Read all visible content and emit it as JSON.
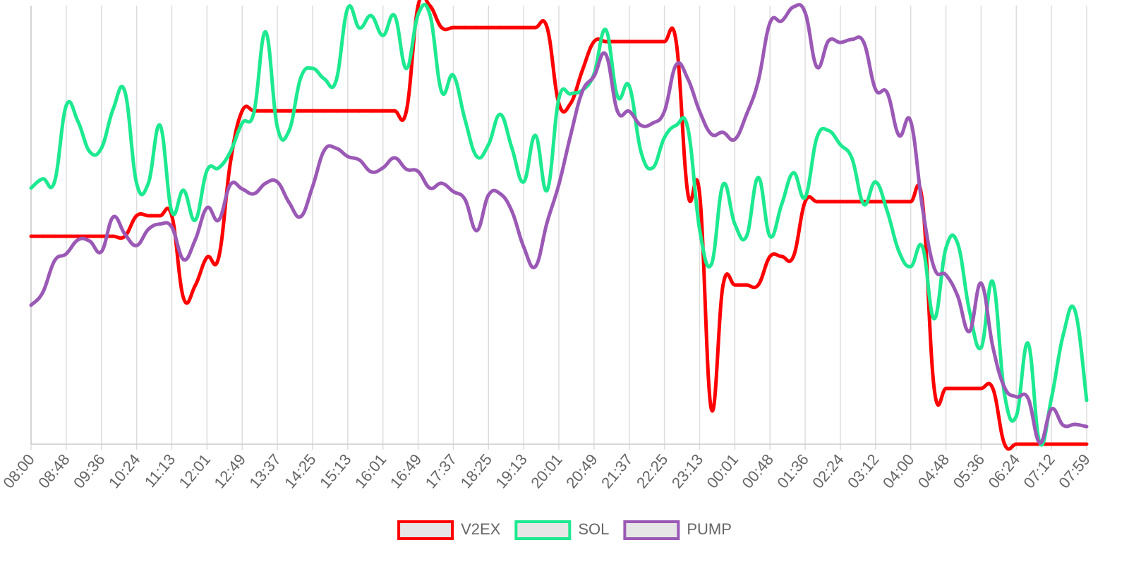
{
  "chart_data": {
    "type": "line",
    "categories": [
      "08:00",
      null,
      null,
      "08:48",
      null,
      null,
      "09:36",
      null,
      null,
      "10:24",
      null,
      null,
      "11:13",
      null,
      null,
      "12:01",
      null,
      null,
      "12:49",
      null,
      null,
      "13:37",
      null,
      null,
      "14:25",
      null,
      null,
      "15:13",
      null,
      null,
      "16:01",
      null,
      null,
      "16:49",
      null,
      null,
      "17:37",
      null,
      null,
      "18:25",
      null,
      null,
      "19:13",
      null,
      null,
      "20:01",
      null,
      null,
      "20:49",
      null,
      null,
      "21:37",
      null,
      null,
      "22:25",
      null,
      null,
      "23:13",
      null,
      null,
      "00:01",
      null,
      null,
      "00:48",
      null,
      null,
      "01:36",
      null,
      null,
      "02:24",
      null,
      null,
      "03:12",
      null,
      null,
      "04:00",
      null,
      null,
      "04:48",
      null,
      null,
      "05:36",
      null,
      null,
      "06:24",
      null,
      null,
      "07:12",
      null,
      null,
      "07:59"
    ],
    "series": [
      {
        "name": "V2EX",
        "color": "#ff0000",
        "values": [
          47.4,
          47.4,
          47.4,
          47.4,
          47.4,
          47.4,
          47.4,
          47.4,
          47.4,
          52.1,
          52.1,
          52.1,
          52.1,
          33.3,
          36.2,
          42.6,
          42.6,
          64.3,
          76,
          76,
          76,
          76,
          76,
          76,
          76,
          76,
          76,
          76,
          76,
          76,
          76,
          76,
          76,
          100,
          100,
          95,
          95,
          95,
          95,
          95,
          95,
          95,
          95,
          95,
          95,
          77.7,
          77.7,
          85.2,
          91.8,
          91.8,
          91.8,
          91.8,
          91.8,
          91.8,
          91.8,
          91.8,
          57.1,
          57.1,
          8,
          36.3,
          36.3,
          36.3,
          36.3,
          42.8,
          42.8,
          42.8,
          55.3,
          55.3,
          55.3,
          55.3,
          55.3,
          55.3,
          55.3,
          55.3,
          55.3,
          55.3,
          55.3,
          12.7,
          12.7,
          12.7,
          12.7,
          12.7,
          12.7,
          0,
          0,
          0,
          0,
          0,
          0,
          0,
          0
        ]
      },
      {
        "name": "SOL",
        "color": "#1de990",
        "values": [
          58.4,
          60.5,
          59.8,
          77.2,
          73.6,
          66.7,
          67.5,
          76.4,
          80.4,
          59.5,
          59.5,
          72.7,
          53,
          57.9,
          51.1,
          62.4,
          63,
          66.7,
          73.2,
          75.6,
          94,
          72.3,
          71.5,
          83.6,
          85.7,
          83.3,
          82.8,
          99.4,
          94.9,
          97.7,
          93.2,
          97.7,
          85.7,
          98,
          98,
          80.4,
          84.1,
          74,
          65.6,
          68.3,
          75.2,
          67.5,
          59.8,
          70.4,
          57.9,
          78.8,
          79.9,
          80.7,
          84.4,
          94.5,
          79.3,
          81.7,
          66.7,
          63,
          69.9,
          72.7,
          72,
          49,
          41,
          59.2,
          50.2,
          47.4,
          60.8,
          47.4,
          54.7,
          61.9,
          56.3,
          69.9,
          71.5,
          68.3,
          65.1,
          54.7,
          59.8,
          53.1,
          43.9,
          40.5,
          45,
          28.6,
          44.7,
          45.8,
          30.5,
          22,
          37,
          11.3,
          6.4,
          23,
          0.3,
          10.5,
          24.9,
          30.5,
          10
        ]
      },
      {
        "name": "PUMP",
        "color": "#9b59b6",
        "values": [
          31.7,
          34.6,
          41.8,
          43.4,
          46.6,
          46.3,
          43.9,
          51.8,
          47.9,
          45.3,
          49,
          50.2,
          49.5,
          42.1,
          46.6,
          53.9,
          51.1,
          59.2,
          58.2,
          57.1,
          59.5,
          59.8,
          55.1,
          51.9,
          58.7,
          67,
          67.5,
          65.6,
          64.8,
          62.1,
          63,
          65.3,
          62.7,
          62.2,
          58.4,
          59.5,
          57.6,
          55.8,
          48.7,
          56.8,
          57.1,
          53.1,
          45,
          40.5,
          50.6,
          59.2,
          70.4,
          80.4,
          83.9,
          88.9,
          75.9,
          75.9,
          72.7,
          73.2,
          75.9,
          86.5,
          83.3,
          75.9,
          70.7,
          71.1,
          69.5,
          75.2,
          82.8,
          96.1,
          96.5,
          99.7,
          98.4,
          86,
          92,
          91.6,
          92.3,
          91.6,
          80.9,
          80.1,
          70.4,
          73.6,
          53.9,
          40.2,
          38.6,
          33.8,
          25.7,
          36.7,
          22.2,
          12.9,
          10.8,
          10.5,
          0.3,
          8,
          4.3,
          4.5,
          4
        ]
      }
    ],
    "ylim": [
      0,
      100
    ],
    "grid": true,
    "legend": "bottom"
  }
}
